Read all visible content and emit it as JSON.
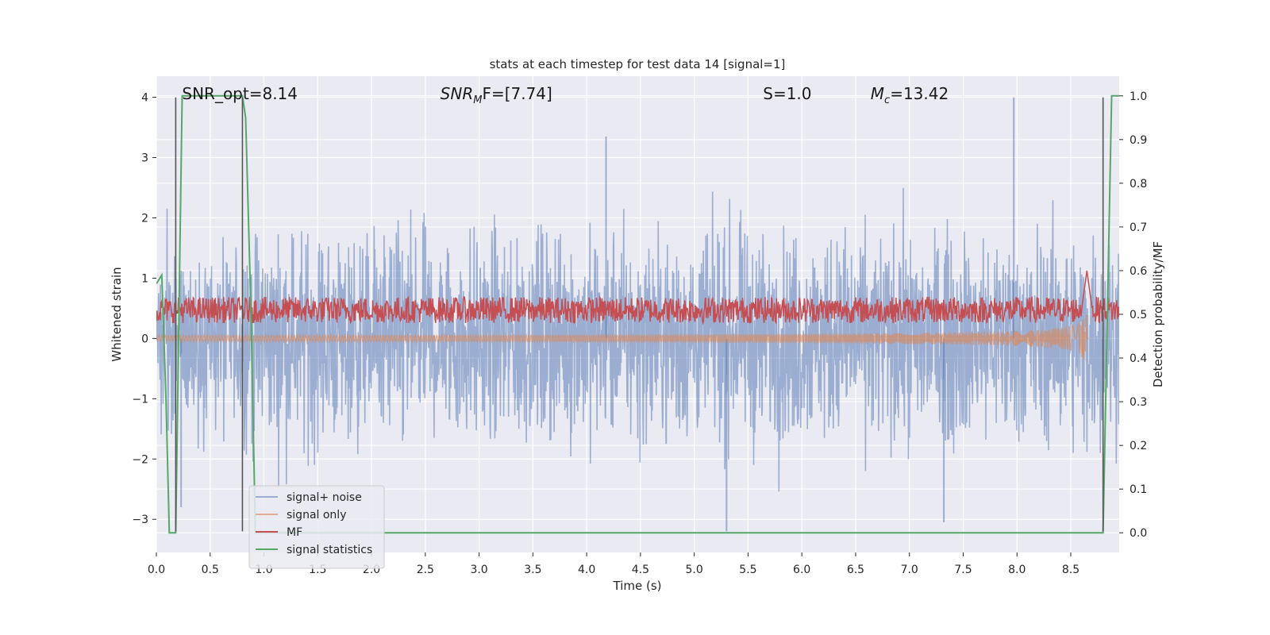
{
  "chart_data": {
    "type": "line",
    "title": "stats at each timestep for test data 14 [signal=1]",
    "xlabel": "Time (s)",
    "ylabel": "Whitened strain",
    "ylabel_right": "Detection probability/MF",
    "xlim": [
      0.0,
      8.95
    ],
    "ylim": [
      -3.55,
      4.35
    ],
    "ylim_right": [
      -0.045,
      1.045
    ],
    "x_ticks": [
      "0.0",
      "0.5",
      "1.0",
      "1.5",
      "2.0",
      "2.5",
      "3.0",
      "3.5",
      "4.0",
      "4.5",
      "5.0",
      "5.5",
      "6.0",
      "6.5",
      "7.0",
      "7.5",
      "8.0",
      "8.5"
    ],
    "x_tick_values": [
      0.0,
      0.5,
      1.0,
      1.5,
      2.0,
      2.5,
      3.0,
      3.5,
      4.0,
      4.5,
      5.0,
      5.5,
      6.0,
      6.5,
      7.0,
      7.5,
      8.0,
      8.5
    ],
    "y_ticks": [
      "−3",
      "−2",
      "−1",
      "0",
      "1",
      "2",
      "3",
      "4"
    ],
    "y_tick_values": [
      -3,
      -2,
      -1,
      0,
      1,
      2,
      3,
      4
    ],
    "y_ticks_right": [
      "0.0",
      "0.1",
      "0.2",
      "0.3",
      "0.4",
      "0.5",
      "0.6",
      "0.7",
      "0.8",
      "0.9",
      "1.0"
    ],
    "y_tick_values_right": [
      0.0,
      0.1,
      0.2,
      0.3,
      0.4,
      0.5,
      0.6,
      0.7,
      0.8,
      0.9,
      1.0
    ],
    "grid": true,
    "legend_position": "lower-left",
    "background": "#eaeaf2",
    "annotations": [
      {
        "text": "SNR_opt=8.14",
        "x": 0.18,
        "y": 4.02
      },
      {
        "text": "SNR",
        "sub": "M",
        "suffix": "F=[7.74]",
        "x": 2.58,
        "y": 4.02
      },
      {
        "text": "S",
        "suffix": "=1.0",
        "x": 5.58,
        "y": 4.02
      },
      {
        "text": "M",
        "sub": "c",
        "suffix": "=13.42",
        "x": 6.58,
        "y": 4.02
      }
    ],
    "series": [
      {
        "name": "signal+ noise",
        "color": "#4c72b0",
        "alpha": 0.5,
        "axis": "left",
        "style": "noise",
        "amplitude_std": 0.85,
        "peaks": [
          {
            "x": 4.18,
            "y": 3.35
          },
          {
            "x": 7.97,
            "y": 4.0
          },
          {
            "x": 5.3,
            "y": -3.2
          },
          {
            "x": 7.32,
            "y": -3.05
          },
          {
            "x": 0.23,
            "y": -2.8
          }
        ]
      },
      {
        "name": "signal only",
        "color": "#dd8452",
        "alpha": 0.6,
        "axis": "left",
        "style": "chirp",
        "merger_time": 8.65,
        "peak_amplitude": 1.3
      },
      {
        "name": "MF",
        "color": "#c44e52",
        "axis": "right",
        "style": "band",
        "base": 0.51,
        "spread": 0.03,
        "peak": {
          "x": 8.65,
          "y": 0.6
        }
      },
      {
        "name": "signal statistics",
        "color": "#55a868",
        "axis": "right",
        "style": "line",
        "x": [
          0.0,
          0.05,
          0.09,
          0.12,
          0.18,
          0.24,
          0.8,
          0.83,
          0.88,
          0.92,
          8.8,
          8.84,
          8.88,
          8.95
        ],
        "y": [
          0.57,
          0.59,
          0.3,
          0.0,
          0.0,
          1.0,
          1.0,
          0.95,
          0.5,
          0.0,
          0.0,
          0.5,
          1.0,
          1.0
        ]
      },
      {
        "name": "",
        "color": "#555555",
        "axis": "left",
        "style": "vlines",
        "x": [
          0.18,
          0.8,
          8.8
        ],
        "y_range": [
          -3.2,
          4.0
        ]
      }
    ]
  }
}
